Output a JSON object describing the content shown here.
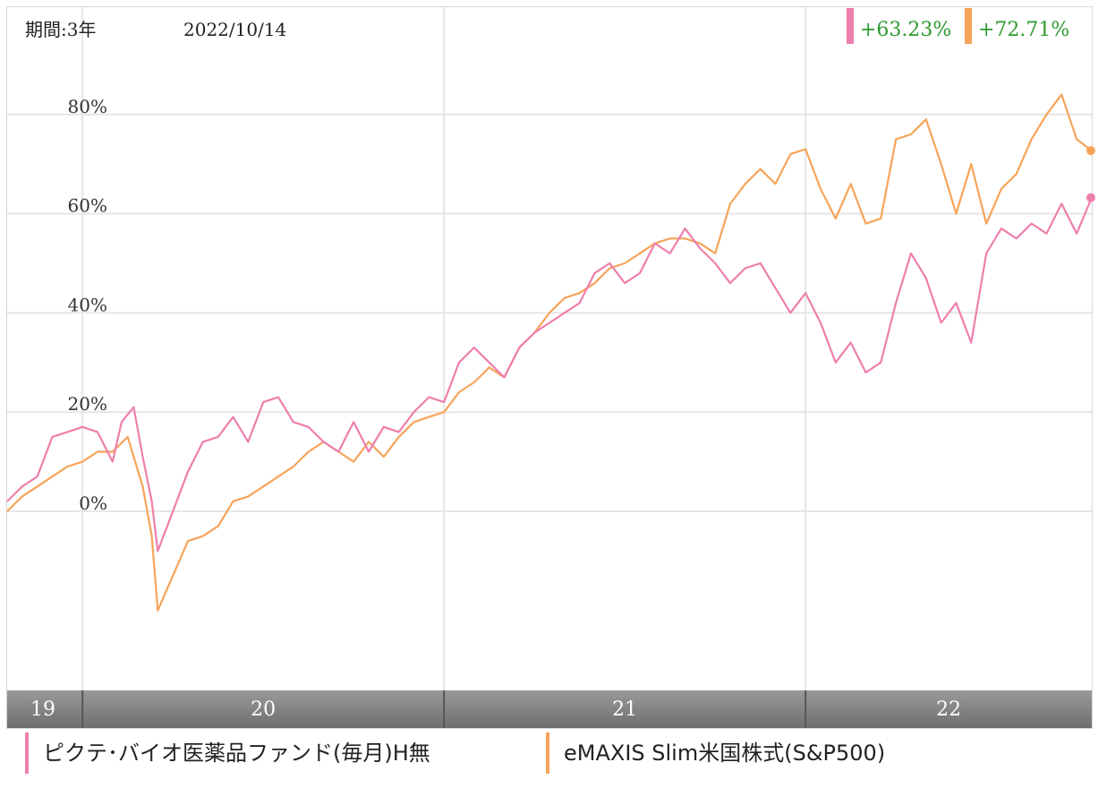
{
  "header": {
    "period_label": "期間:3年",
    "date_label": "2022/10/14"
  },
  "colors": {
    "pink": "#ee7fad",
    "orange": "#f7a45a",
    "return_text": "#2e9a2e",
    "grid": "#e6e6e6",
    "axis_bar": "#7a7a7a",
    "axis_text": "#ffffff",
    "tick_text": "#333333"
  },
  "chart_data": {
    "type": "line",
    "x_unit": "months since 2019-10",
    "x_range": [
      0,
      36
    ],
    "ylim": [
      -30,
      100
    ],
    "y_ticks": [
      {
        "value": 0,
        "label": "0%"
      },
      {
        "value": 20,
        "label": "20%"
      },
      {
        "value": 40,
        "label": "40%"
      },
      {
        "value": 60,
        "label": "60%"
      },
      {
        "value": 80,
        "label": "80%"
      }
    ],
    "x_ticks": [
      {
        "start": 0,
        "end": 2.5,
        "label": "19"
      },
      {
        "start": 2.5,
        "end": 14.5,
        "label": "20"
      },
      {
        "start": 14.5,
        "end": 26.5,
        "label": "21"
      },
      {
        "start": 26.5,
        "end": 36,
        "label": "22"
      }
    ],
    "grid": true,
    "series": [
      {
        "name": "ピクテ･バイオ医薬品ファンド(毎月)H無",
        "color": "#ee7fad",
        "latest_return": "+63.23%",
        "points": [
          [
            0.0,
            2
          ],
          [
            0.5,
            5
          ],
          [
            1.0,
            7
          ],
          [
            1.5,
            15
          ],
          [
            2.0,
            16
          ],
          [
            2.5,
            17
          ],
          [
            3.0,
            16
          ],
          [
            3.5,
            10
          ],
          [
            3.8,
            18
          ],
          [
            4.2,
            21
          ],
          [
            4.5,
            11
          ],
          [
            4.8,
            2
          ],
          [
            5.0,
            -8
          ],
          [
            5.5,
            0
          ],
          [
            6.0,
            8
          ],
          [
            6.5,
            14
          ],
          [
            7.0,
            15
          ],
          [
            7.5,
            19
          ],
          [
            8.0,
            14
          ],
          [
            8.5,
            22
          ],
          [
            9.0,
            23
          ],
          [
            9.5,
            18
          ],
          [
            10.0,
            17
          ],
          [
            10.5,
            14
          ],
          [
            11.0,
            12
          ],
          [
            11.5,
            18
          ],
          [
            12.0,
            12
          ],
          [
            12.5,
            17
          ],
          [
            13.0,
            16
          ],
          [
            13.5,
            20
          ],
          [
            14.0,
            23
          ],
          [
            14.5,
            22
          ],
          [
            15.0,
            30
          ],
          [
            15.5,
            33
          ],
          [
            16.0,
            30
          ],
          [
            16.5,
            27
          ],
          [
            17.0,
            33
          ],
          [
            17.5,
            36
          ],
          [
            18.0,
            38
          ],
          [
            18.5,
            40
          ],
          [
            19.0,
            42
          ],
          [
            19.5,
            48
          ],
          [
            20.0,
            50
          ],
          [
            20.5,
            46
          ],
          [
            21.0,
            48
          ],
          [
            21.5,
            54
          ],
          [
            22.0,
            52
          ],
          [
            22.5,
            57
          ],
          [
            23.0,
            53
          ],
          [
            23.5,
            50
          ],
          [
            24.0,
            46
          ],
          [
            24.5,
            49
          ],
          [
            25.0,
            50
          ],
          [
            25.5,
            45
          ],
          [
            26.0,
            40
          ],
          [
            26.5,
            44
          ],
          [
            27.0,
            38
          ],
          [
            27.5,
            30
          ],
          [
            28.0,
            34
          ],
          [
            28.5,
            28
          ],
          [
            29.0,
            30
          ],
          [
            29.5,
            42
          ],
          [
            30.0,
            52
          ],
          [
            30.5,
            47
          ],
          [
            31.0,
            38
          ],
          [
            31.5,
            42
          ],
          [
            32.0,
            34
          ],
          [
            32.5,
            52
          ],
          [
            33.0,
            57
          ],
          [
            33.5,
            55
          ],
          [
            34.0,
            58
          ],
          [
            34.5,
            56
          ],
          [
            35.0,
            62
          ],
          [
            35.5,
            56
          ],
          [
            36.0,
            63.23
          ]
        ]
      },
      {
        "name": "eMAXIS Slim米国株式(S&P500)",
        "color": "#f7a45a",
        "latest_return": "+72.71%",
        "points": [
          [
            0.0,
            0
          ],
          [
            0.5,
            3
          ],
          [
            1.0,
            5
          ],
          [
            1.5,
            7
          ],
          [
            2.0,
            9
          ],
          [
            2.5,
            10
          ],
          [
            3.0,
            12
          ],
          [
            3.5,
            12
          ],
          [
            4.0,
            15
          ],
          [
            4.5,
            5
          ],
          [
            4.8,
            -5
          ],
          [
            5.0,
            -20
          ],
          [
            5.5,
            -13
          ],
          [
            6.0,
            -6
          ],
          [
            6.5,
            -5
          ],
          [
            7.0,
            -3
          ],
          [
            7.5,
            2
          ],
          [
            8.0,
            3
          ],
          [
            8.5,
            5
          ],
          [
            9.0,
            7
          ],
          [
            9.5,
            9
          ],
          [
            10.0,
            12
          ],
          [
            10.5,
            14
          ],
          [
            11.0,
            12
          ],
          [
            11.5,
            10
          ],
          [
            12.0,
            14
          ],
          [
            12.5,
            11
          ],
          [
            13.0,
            15
          ],
          [
            13.5,
            18
          ],
          [
            14.0,
            19
          ],
          [
            14.5,
            20
          ],
          [
            15.0,
            24
          ],
          [
            15.5,
            26
          ],
          [
            16.0,
            29
          ],
          [
            16.5,
            27
          ],
          [
            17.0,
            33
          ],
          [
            17.5,
            36
          ],
          [
            18.0,
            40
          ],
          [
            18.5,
            43
          ],
          [
            19.0,
            44
          ],
          [
            19.5,
            46
          ],
          [
            20.0,
            49
          ],
          [
            20.5,
            50
          ],
          [
            21.0,
            52
          ],
          [
            21.5,
            54
          ],
          [
            22.0,
            55
          ],
          [
            22.5,
            55
          ],
          [
            23.0,
            54
          ],
          [
            23.5,
            52
          ],
          [
            24.0,
            62
          ],
          [
            24.5,
            66
          ],
          [
            25.0,
            69
          ],
          [
            25.5,
            66
          ],
          [
            26.0,
            72
          ],
          [
            26.5,
            73
          ],
          [
            27.0,
            65
          ],
          [
            27.5,
            59
          ],
          [
            28.0,
            66
          ],
          [
            28.5,
            58
          ],
          [
            29.0,
            59
          ],
          [
            29.5,
            75
          ],
          [
            30.0,
            76
          ],
          [
            30.5,
            79
          ],
          [
            31.0,
            70
          ],
          [
            31.5,
            60
          ],
          [
            32.0,
            70
          ],
          [
            32.5,
            58
          ],
          [
            33.0,
            65
          ],
          [
            33.5,
            68
          ],
          [
            34.0,
            75
          ],
          [
            34.5,
            80
          ],
          [
            35.0,
            84
          ],
          [
            35.5,
            75
          ],
          [
            36.0,
            72.71
          ]
        ]
      }
    ]
  }
}
